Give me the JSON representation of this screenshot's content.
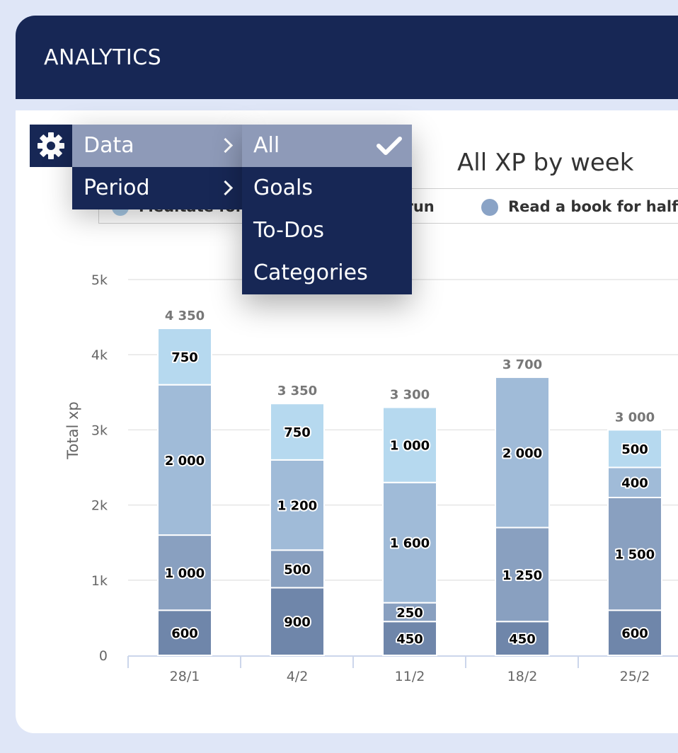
{
  "header": {
    "title": "ANALYTICS"
  },
  "chart_data": {
    "type": "bar",
    "stacked": true,
    "title": "All XP by week",
    "ylabel": "Total xp",
    "xlabel": "",
    "ylim": [
      0,
      5000
    ],
    "yticks": [
      "0",
      "1k",
      "2k",
      "3k",
      "4k",
      "5k"
    ],
    "categories": [
      "28/1",
      "4/2",
      "11/2",
      "18/2",
      "25/2"
    ],
    "totals": [
      "4 350",
      "3 350",
      "3 300",
      "3 700",
      "3 000"
    ],
    "legend_visible": [
      "Meditate for",
      "a run",
      "Read a book for half"
    ],
    "segments": [
      [
        {
          "value": 600,
          "label": "600",
          "color": "#6f86aa"
        },
        {
          "value": 1000,
          "label": "1 000",
          "color": "#89a0c0"
        },
        {
          "value": 2000,
          "label": "2 000",
          "color": "#a0bbd8"
        },
        {
          "value": 750,
          "label": "750",
          "color": "#b6d9ef"
        }
      ],
      [
        {
          "value": 900,
          "label": "900",
          "color": "#6f86aa"
        },
        {
          "value": 500,
          "label": "500",
          "color": "#89a0c0"
        },
        {
          "value": 1200,
          "label": "1 200",
          "color": "#a0bbd8"
        },
        {
          "value": 750,
          "label": "750",
          "color": "#b6d9ef"
        }
      ],
      [
        {
          "value": 450,
          "label": "450",
          "color": "#6f86aa"
        },
        {
          "value": 250,
          "label": "250",
          "color": "#89a0c0"
        },
        {
          "value": 1600,
          "label": "1 600",
          "color": "#a0bbd8"
        },
        {
          "value": 1000,
          "label": "1 000",
          "color": "#b6d9ef"
        }
      ],
      [
        {
          "value": 450,
          "label": "450",
          "color": "#6f86aa"
        },
        {
          "value": 1250,
          "label": "1 250",
          "color": "#89a0c0"
        },
        {
          "value": 2000,
          "label": "2 000",
          "color": "#a0bbd8"
        }
      ],
      [
        {
          "value": 600,
          "label": "600",
          "color": "#6f86aa"
        },
        {
          "value": 1500,
          "label": "1 500",
          "color": "#89a0c0"
        },
        {
          "value": 400,
          "label": "400",
          "color": "#a0bbd8"
        },
        {
          "value": 500,
          "label": "500",
          "color": "#b6d9ef"
        }
      ]
    ],
    "grid": true,
    "legend_position": "top"
  },
  "legend": {
    "items": [
      {
        "label": "Meditate for",
        "color": "#a7c9e6"
      },
      {
        "label": "a run",
        "color": "#8faad0"
      },
      {
        "label": "Read a book for half",
        "color": "#8aa3c6"
      }
    ]
  },
  "menu": {
    "data_label": "Data",
    "period_label": "Period",
    "options": {
      "all": "All",
      "goals": "Goals",
      "todos": "To-Dos",
      "categories": "Categories"
    },
    "icons": {
      "settings": "gear-icon",
      "submenu": "chevron-right-icon",
      "selected": "check-icon"
    }
  }
}
